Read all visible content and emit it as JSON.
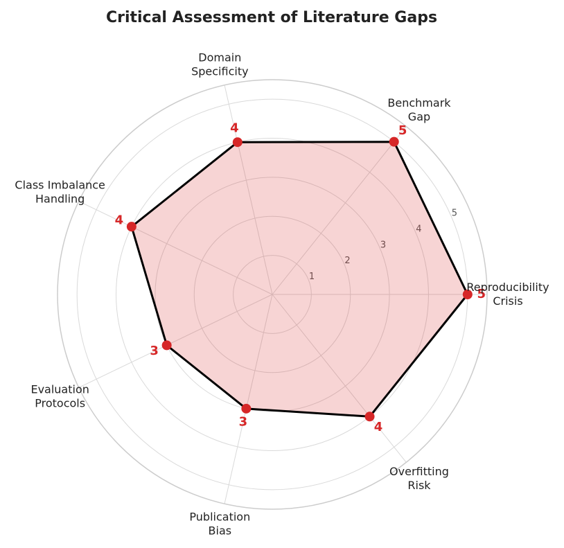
{
  "chart_data": {
    "type": "radar",
    "title": "Critical Assessment of Literature Gaps",
    "categories": [
      "Reproducibility\nCrisis",
      "Benchmark\nGap",
      "Domain\nSpecificity",
      "Class Imbalance\nHandling",
      "Evaluation\nProtocols",
      "Publication\nBias",
      "Overfitting\nRisk"
    ],
    "values": [
      5,
      5,
      4,
      4,
      3,
      3,
      4
    ],
    "color": "#d62728",
    "line_color": "#000000",
    "ylim": [
      0,
      5.5
    ],
    "yticks": [
      1,
      2,
      3,
      4,
      5
    ],
    "grid": true
  }
}
